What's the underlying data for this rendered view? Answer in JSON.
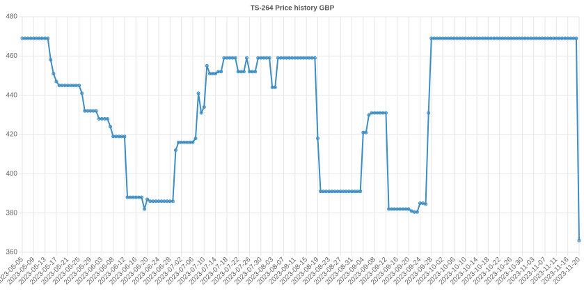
{
  "chart_data": {
    "type": "line",
    "title": "TS-264 Price history GBP",
    "categories": [
      "2023-05-05",
      null,
      null,
      null,
      "2023-05-09",
      null,
      null,
      null,
      "2023-05-13",
      null,
      null,
      null,
      "2023-05-17",
      null,
      null,
      null,
      "2023-05-21",
      null,
      null,
      null,
      "2023-05-25",
      null,
      null,
      null,
      "2023-05-29",
      null,
      null,
      null,
      "2023-06-03",
      null,
      null,
      null,
      "2023-06-08",
      null,
      null,
      null,
      "2023-06-12",
      null,
      null,
      null,
      "2023-06-16",
      null,
      null,
      null,
      "2023-06-20",
      null,
      null,
      null,
      "2023-06-24",
      null,
      null,
      null,
      "2023-06-28",
      null,
      null,
      null,
      "2023-07-02",
      null,
      null,
      null,
      "2023-07-06",
      null,
      null,
      null,
      "2023-07-10",
      null,
      null,
      null,
      "2023-07-14",
      null,
      null,
      null,
      "2023-07-18",
      null,
      null,
      null,
      "2023-07-22",
      null,
      null,
      null,
      "2023-07-26",
      null,
      null,
      null,
      "2023-07-30",
      null,
      null,
      null,
      "2023-08-03",
      null,
      null,
      null,
      "2023-08-07",
      null,
      null,
      null,
      "2023-08-11",
      null,
      null,
      null,
      "2023-08-15",
      null,
      null,
      null,
      "2023-08-19",
      null,
      null,
      null,
      "2023-08-23",
      null,
      null,
      null,
      "2023-08-27",
      null,
      null,
      null,
      "2023-08-31",
      null,
      null,
      null,
      "2023-09-04",
      null,
      null,
      null,
      "2023-09-08",
      null,
      null,
      null,
      "2023-09-12",
      null,
      null,
      null,
      "2023-09-16",
      null,
      null,
      null,
      "2023-09-20",
      null,
      null,
      null,
      "2023-09-24",
      null,
      null,
      null,
      "2023-09-28",
      null,
      null,
      null,
      "2023-10-02",
      null,
      null,
      null,
      "2023-10-06",
      null,
      null,
      null,
      "2023-10-10",
      null,
      null,
      null,
      "2023-10-14",
      null,
      null,
      null,
      "2023-10-18",
      null,
      null,
      null,
      "2023-10-22",
      null,
      null,
      null,
      "2023-10-26",
      null,
      null,
      null,
      "2023-10-30",
      null,
      null,
      null,
      "2023-11-03",
      null,
      null,
      null,
      "2023-11-07",
      null,
      null,
      null,
      "2023-11-11",
      null,
      null,
      null,
      "2023-11-16",
      null,
      null,
      null,
      "2023-11-20"
    ],
    "values": [
      469,
      469,
      469,
      469,
      469,
      469,
      469,
      469,
      469,
      469,
      458,
      451,
      447,
      445,
      445,
      445,
      445,
      445,
      445,
      445,
      445,
      441,
      432,
      432,
      432,
      432,
      432,
      428,
      428,
      428,
      428,
      424,
      419,
      419,
      419,
      419,
      419,
      388,
      388,
      388,
      388,
      388,
      388,
      382,
      387,
      386,
      386,
      386,
      386,
      386,
      386,
      386,
      386,
      386,
      412,
      416,
      416,
      416,
      416,
      416,
      416,
      418,
      441,
      431,
      434,
      455,
      451,
      451,
      451,
      452,
      452,
      459,
      459,
      459,
      459,
      459,
      452,
      452,
      452,
      459,
      452,
      452,
      452,
      459,
      459,
      459,
      459,
      459,
      444,
      444,
      459,
      459,
      459,
      459,
      459,
      459,
      459,
      459,
      459,
      459,
      459,
      459,
      459,
      459,
      418,
      391,
      391,
      391,
      391,
      391,
      391,
      391,
      391,
      391,
      391,
      391,
      391,
      391,
      391,
      391,
      421,
      421,
      430,
      431,
      431,
      431,
      431,
      431,
      431,
      382,
      382,
      382,
      382,
      382,
      382,
      382,
      382,
      381,
      380.5,
      380.5,
      385,
      385,
      384.5,
      431,
      469,
      469,
      469,
      469,
      469,
      469,
      469,
      469,
      469,
      469,
      469,
      469,
      469,
      469,
      469,
      469,
      469,
      469,
      469,
      469,
      469,
      469,
      469,
      469,
      469,
      469,
      469,
      469,
      469,
      469,
      469,
      469,
      469,
      469,
      469,
      469,
      469,
      469,
      469,
      469,
      469,
      469,
      469,
      469,
      469,
      469,
      469,
      469,
      469,
      469,
      469,
      469,
      366
    ],
    "color": "#3e8ec4",
    "ylim": [
      360,
      480
    ],
    "yticks": [
      360,
      380,
      400,
      420,
      440,
      460,
      480
    ],
    "grid": true
  }
}
